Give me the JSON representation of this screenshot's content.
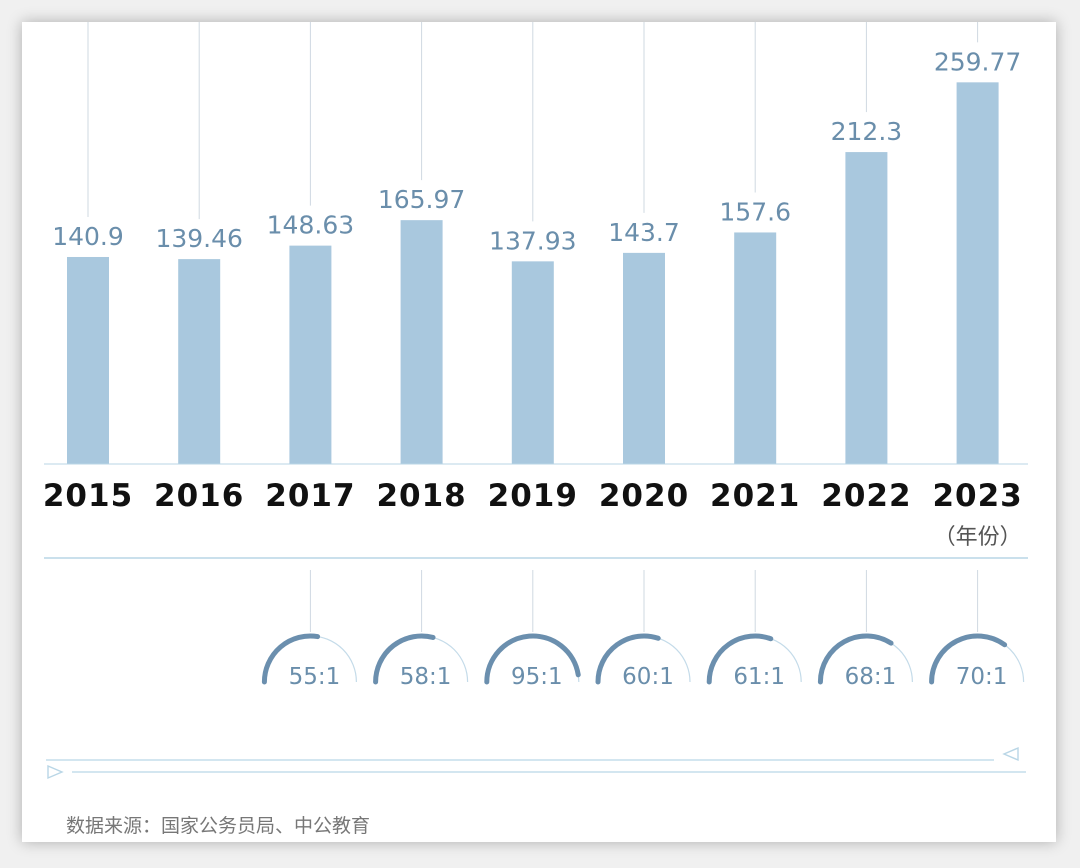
{
  "chart_data": [
    {
      "type": "bar",
      "categories": [
        "2015",
        "2016",
        "2017",
        "2018",
        "2019",
        "2020",
        "2021",
        "2022",
        "2023"
      ],
      "values": [
        140.9,
        139.46,
        148.63,
        165.97,
        137.93,
        143.7,
        157.6,
        212.3,
        259.77
      ],
      "value_labels": [
        "140.9",
        "139.46",
        "148.63",
        "165.97",
        "137.93",
        "143.7",
        "157.6",
        "212.3",
        "259.77"
      ],
      "x_unit_label": "（年份）",
      "ylim": [
        0,
        275
      ],
      "grid": false,
      "bar_color": "#a9c8de"
    },
    {
      "type": "gauge",
      "categories": [
        "2017",
        "2018",
        "2019",
        "2020",
        "2021",
        "2022",
        "2023"
      ],
      "labels": [
        "55:1",
        "58:1",
        "95:1",
        "60:1",
        "61:1",
        "68:1",
        "70:1"
      ],
      "values": [
        55,
        58,
        95,
        60,
        61,
        68,
        70
      ],
      "max": 100,
      "arc_color": "#6b8fae"
    }
  ],
  "source_text": "数据来源：国家公务员局、中公教育",
  "colors": {
    "bar": "#a9c8de",
    "accent": "#6b8fae",
    "text_value": "#6a8eab",
    "guide_line": "#cfd9e2",
    "rule_line": "#b9d6e6"
  }
}
